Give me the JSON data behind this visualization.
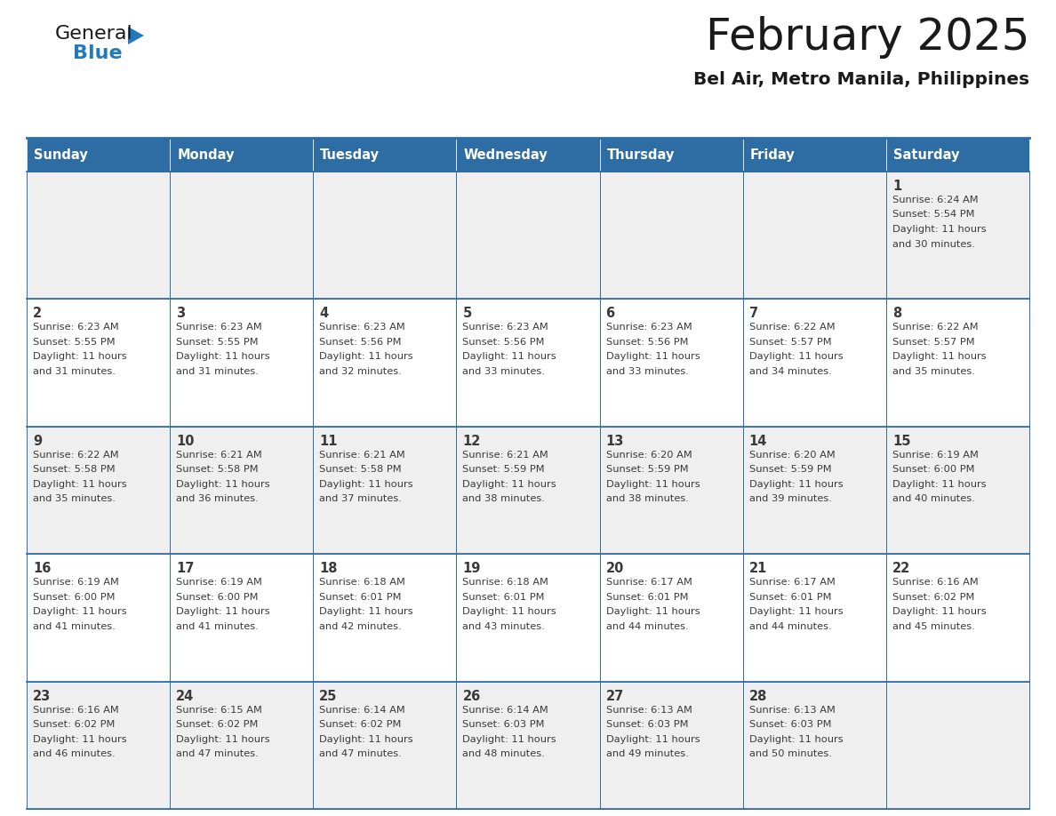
{
  "title": "February 2025",
  "subtitle": "Bel Air, Metro Manila, Philippines",
  "header_bg": "#2E6DA4",
  "header_text_color": "#FFFFFF",
  "cell_bg_even": "#EFEFEF",
  "cell_bg_odd": "#FFFFFF",
  "border_color": "#2E6DA4",
  "text_color": "#3a3a3a",
  "day_names": [
    "Sunday",
    "Monday",
    "Tuesday",
    "Wednesday",
    "Thursday",
    "Friday",
    "Saturday"
  ],
  "days": [
    {
      "day": 1,
      "col": 6,
      "row": 0,
      "sunrise": "6:24 AM",
      "sunset": "5:54 PM",
      "dl1": "Daylight: 11 hours",
      "dl2": "and 30 minutes."
    },
    {
      "day": 2,
      "col": 0,
      "row": 1,
      "sunrise": "6:23 AM",
      "sunset": "5:55 PM",
      "dl1": "Daylight: 11 hours",
      "dl2": "and 31 minutes."
    },
    {
      "day": 3,
      "col": 1,
      "row": 1,
      "sunrise": "6:23 AM",
      "sunset": "5:55 PM",
      "dl1": "Daylight: 11 hours",
      "dl2": "and 31 minutes."
    },
    {
      "day": 4,
      "col": 2,
      "row": 1,
      "sunrise": "6:23 AM",
      "sunset": "5:56 PM",
      "dl1": "Daylight: 11 hours",
      "dl2": "and 32 minutes."
    },
    {
      "day": 5,
      "col": 3,
      "row": 1,
      "sunrise": "6:23 AM",
      "sunset": "5:56 PM",
      "dl1": "Daylight: 11 hours",
      "dl2": "and 33 minutes."
    },
    {
      "day": 6,
      "col": 4,
      "row": 1,
      "sunrise": "6:23 AM",
      "sunset": "5:56 PM",
      "dl1": "Daylight: 11 hours",
      "dl2": "and 33 minutes."
    },
    {
      "day": 7,
      "col": 5,
      "row": 1,
      "sunrise": "6:22 AM",
      "sunset": "5:57 PM",
      "dl1": "Daylight: 11 hours",
      "dl2": "and 34 minutes."
    },
    {
      "day": 8,
      "col": 6,
      "row": 1,
      "sunrise": "6:22 AM",
      "sunset": "5:57 PM",
      "dl1": "Daylight: 11 hours",
      "dl2": "and 35 minutes."
    },
    {
      "day": 9,
      "col": 0,
      "row": 2,
      "sunrise": "6:22 AM",
      "sunset": "5:58 PM",
      "dl1": "Daylight: 11 hours",
      "dl2": "and 35 minutes."
    },
    {
      "day": 10,
      "col": 1,
      "row": 2,
      "sunrise": "6:21 AM",
      "sunset": "5:58 PM",
      "dl1": "Daylight: 11 hours",
      "dl2": "and 36 minutes."
    },
    {
      "day": 11,
      "col": 2,
      "row": 2,
      "sunrise": "6:21 AM",
      "sunset": "5:58 PM",
      "dl1": "Daylight: 11 hours",
      "dl2": "and 37 minutes."
    },
    {
      "day": 12,
      "col": 3,
      "row": 2,
      "sunrise": "6:21 AM",
      "sunset": "5:59 PM",
      "dl1": "Daylight: 11 hours",
      "dl2": "and 38 minutes."
    },
    {
      "day": 13,
      "col": 4,
      "row": 2,
      "sunrise": "6:20 AM",
      "sunset": "5:59 PM",
      "dl1": "Daylight: 11 hours",
      "dl2": "and 38 minutes."
    },
    {
      "day": 14,
      "col": 5,
      "row": 2,
      "sunrise": "6:20 AM",
      "sunset": "5:59 PM",
      "dl1": "Daylight: 11 hours",
      "dl2": "and 39 minutes."
    },
    {
      "day": 15,
      "col": 6,
      "row": 2,
      "sunrise": "6:19 AM",
      "sunset": "6:00 PM",
      "dl1": "Daylight: 11 hours",
      "dl2": "and 40 minutes."
    },
    {
      "day": 16,
      "col": 0,
      "row": 3,
      "sunrise": "6:19 AM",
      "sunset": "6:00 PM",
      "dl1": "Daylight: 11 hours",
      "dl2": "and 41 minutes."
    },
    {
      "day": 17,
      "col": 1,
      "row": 3,
      "sunrise": "6:19 AM",
      "sunset": "6:00 PM",
      "dl1": "Daylight: 11 hours",
      "dl2": "and 41 minutes."
    },
    {
      "day": 18,
      "col": 2,
      "row": 3,
      "sunrise": "6:18 AM",
      "sunset": "6:01 PM",
      "dl1": "Daylight: 11 hours",
      "dl2": "and 42 minutes."
    },
    {
      "day": 19,
      "col": 3,
      "row": 3,
      "sunrise": "6:18 AM",
      "sunset": "6:01 PM",
      "dl1": "Daylight: 11 hours",
      "dl2": "and 43 minutes."
    },
    {
      "day": 20,
      "col": 4,
      "row": 3,
      "sunrise": "6:17 AM",
      "sunset": "6:01 PM",
      "dl1": "Daylight: 11 hours",
      "dl2": "and 44 minutes."
    },
    {
      "day": 21,
      "col": 5,
      "row": 3,
      "sunrise": "6:17 AM",
      "sunset": "6:01 PM",
      "dl1": "Daylight: 11 hours",
      "dl2": "and 44 minutes."
    },
    {
      "day": 22,
      "col": 6,
      "row": 3,
      "sunrise": "6:16 AM",
      "sunset": "6:02 PM",
      "dl1": "Daylight: 11 hours",
      "dl2": "and 45 minutes."
    },
    {
      "day": 23,
      "col": 0,
      "row": 4,
      "sunrise": "6:16 AM",
      "sunset": "6:02 PM",
      "dl1": "Daylight: 11 hours",
      "dl2": "and 46 minutes."
    },
    {
      "day": 24,
      "col": 1,
      "row": 4,
      "sunrise": "6:15 AM",
      "sunset": "6:02 PM",
      "dl1": "Daylight: 11 hours",
      "dl2": "and 47 minutes."
    },
    {
      "day": 25,
      "col": 2,
      "row": 4,
      "sunrise": "6:14 AM",
      "sunset": "6:02 PM",
      "dl1": "Daylight: 11 hours",
      "dl2": "and 47 minutes."
    },
    {
      "day": 26,
      "col": 3,
      "row": 4,
      "sunrise": "6:14 AM",
      "sunset": "6:03 PM",
      "dl1": "Daylight: 11 hours",
      "dl2": "and 48 minutes."
    },
    {
      "day": 27,
      "col": 4,
      "row": 4,
      "sunrise": "6:13 AM",
      "sunset": "6:03 PM",
      "dl1": "Daylight: 11 hours",
      "dl2": "and 49 minutes."
    },
    {
      "day": 28,
      "col": 5,
      "row": 4,
      "sunrise": "6:13 AM",
      "sunset": "6:03 PM",
      "dl1": "Daylight: 11 hours",
      "dl2": "and 50 minutes."
    }
  ],
  "num_rows": 5,
  "logo_color_general": "#1a1a1a",
  "logo_color_blue": "#2479BD"
}
